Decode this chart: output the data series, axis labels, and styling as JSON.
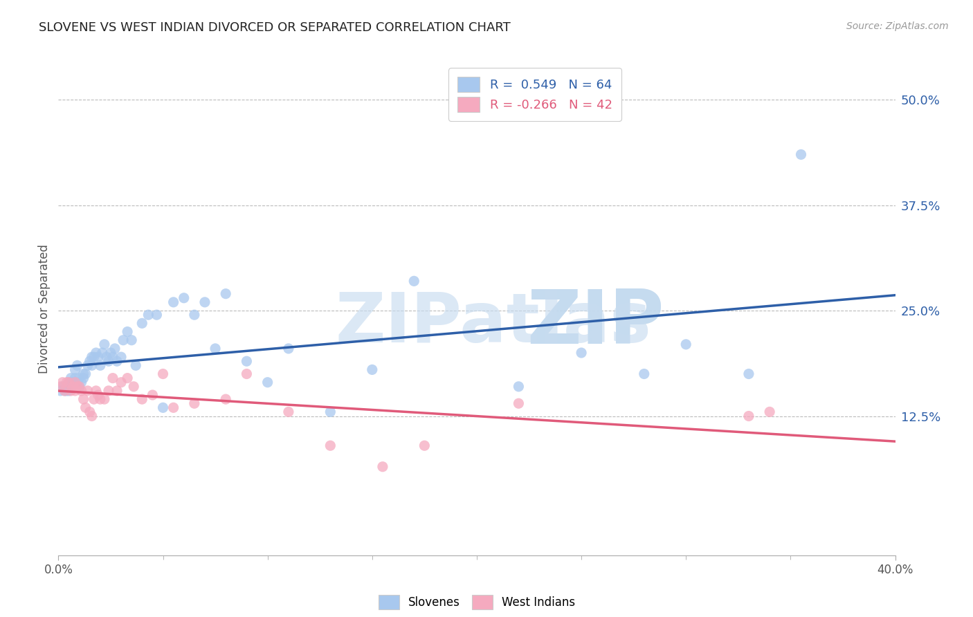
{
  "title": "SLOVENE VS WEST INDIAN DIVORCED OR SEPARATED CORRELATION CHART",
  "source": "Source: ZipAtlas.com",
  "ylabel": "Divorced or Separated",
  "ytick_vals": [
    0.125,
    0.25,
    0.375,
    0.5
  ],
  "xlim": [
    0.0,
    0.4
  ],
  "ylim": [
    -0.04,
    0.545
  ],
  "slovene_color": "#A8C8EE",
  "west_indian_color": "#F5AABF",
  "slovene_line_color": "#2E5FA8",
  "west_indian_line_color": "#E05A7A",
  "watermark_zip_color": "#C8DCF0",
  "watermark_atlas_color": "#C8DCF0",
  "slovene_x": [
    0.001,
    0.002,
    0.003,
    0.003,
    0.004,
    0.005,
    0.005,
    0.006,
    0.006,
    0.007,
    0.007,
    0.008,
    0.008,
    0.009,
    0.009,
    0.01,
    0.01,
    0.011,
    0.012,
    0.012,
    0.013,
    0.014,
    0.015,
    0.016,
    0.016,
    0.017,
    0.018,
    0.019,
    0.02,
    0.021,
    0.022,
    0.023,
    0.024,
    0.025,
    0.026,
    0.027,
    0.028,
    0.03,
    0.031,
    0.033,
    0.035,
    0.037,
    0.04,
    0.043,
    0.047,
    0.05,
    0.055,
    0.06,
    0.065,
    0.07,
    0.075,
    0.08,
    0.09,
    0.1,
    0.11,
    0.13,
    0.15,
    0.17,
    0.22,
    0.25,
    0.28,
    0.3,
    0.33,
    0.355
  ],
  "slovene_y": [
    0.155,
    0.16,
    0.16,
    0.155,
    0.155,
    0.165,
    0.155,
    0.17,
    0.165,
    0.165,
    0.16,
    0.18,
    0.17,
    0.185,
    0.165,
    0.17,
    0.16,
    0.165,
    0.175,
    0.17,
    0.175,
    0.185,
    0.19,
    0.195,
    0.185,
    0.195,
    0.2,
    0.195,
    0.185,
    0.2,
    0.21,
    0.195,
    0.19,
    0.2,
    0.195,
    0.205,
    0.19,
    0.195,
    0.215,
    0.225,
    0.215,
    0.185,
    0.235,
    0.245,
    0.245,
    0.135,
    0.26,
    0.265,
    0.245,
    0.26,
    0.205,
    0.27,
    0.19,
    0.165,
    0.205,
    0.13,
    0.18,
    0.285,
    0.16,
    0.2,
    0.175,
    0.21,
    0.175,
    0.435
  ],
  "west_x": [
    0.001,
    0.002,
    0.003,
    0.004,
    0.005,
    0.006,
    0.007,
    0.008,
    0.008,
    0.009,
    0.01,
    0.011,
    0.012,
    0.013,
    0.014,
    0.015,
    0.016,
    0.017,
    0.018,
    0.019,
    0.02,
    0.022,
    0.024,
    0.026,
    0.028,
    0.03,
    0.033,
    0.036,
    0.04,
    0.045,
    0.05,
    0.055,
    0.065,
    0.08,
    0.09,
    0.11,
    0.13,
    0.155,
    0.175,
    0.22,
    0.33,
    0.34
  ],
  "west_y": [
    0.16,
    0.165,
    0.155,
    0.165,
    0.165,
    0.155,
    0.16,
    0.165,
    0.155,
    0.16,
    0.16,
    0.155,
    0.145,
    0.135,
    0.155,
    0.13,
    0.125,
    0.145,
    0.155,
    0.15,
    0.145,
    0.145,
    0.155,
    0.17,
    0.155,
    0.165,
    0.17,
    0.16,
    0.145,
    0.15,
    0.175,
    0.135,
    0.14,
    0.145,
    0.175,
    0.13,
    0.09,
    0.065,
    0.09,
    0.14,
    0.125,
    0.13
  ]
}
